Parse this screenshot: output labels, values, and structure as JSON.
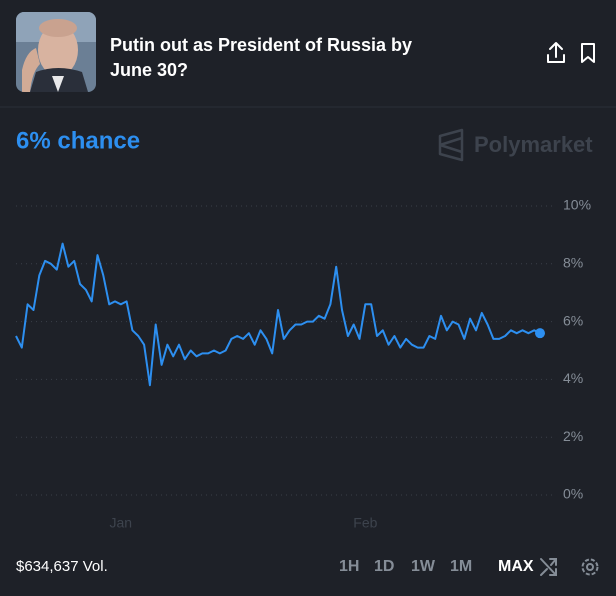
{
  "header": {
    "title_lines": [
      "Putin out as President of Russia by",
      "June 30?"
    ]
  },
  "headline": "6% chance",
  "brand": "Polymarket",
  "chart_data": {
    "type": "line",
    "color": "#2d8ff0",
    "categories": [
      null,
      null,
      null,
      null,
      null,
      null,
      null,
      null,
      null,
      null,
      null,
      null,
      null,
      null,
      null,
      null,
      null,
      null,
      "Jan",
      null,
      null,
      null,
      null,
      null,
      null,
      null,
      null,
      null,
      null,
      null,
      null,
      null,
      null,
      null,
      null,
      null,
      null,
      null,
      null,
      null,
      null,
      null,
      null,
      null,
      null,
      null,
      null,
      null,
      null,
      null,
      null,
      null,
      null,
      null,
      null,
      null,
      null,
      null,
      null,
      null,
      "Feb",
      null,
      null,
      null,
      null,
      null,
      null,
      null,
      null,
      null,
      null,
      null,
      null,
      null,
      null,
      null,
      null,
      null,
      null,
      null,
      null,
      null,
      null,
      null,
      null,
      null,
      null,
      null,
      null,
      null,
      null
    ],
    "values": [
      5.5,
      5.1,
      6.6,
      6.4,
      7.6,
      8.1,
      8.0,
      7.8,
      8.7,
      7.9,
      8.1,
      7.3,
      7.1,
      6.7,
      8.3,
      7.6,
      6.6,
      6.7,
      6.6,
      6.7,
      5.7,
      5.5,
      5.2,
      3.8,
      5.9,
      4.5,
      5.2,
      4.8,
      5.2,
      4.7,
      5.0,
      4.8,
      4.9,
      4.9,
      5.0,
      4.9,
      5.0,
      5.4,
      5.5,
      5.4,
      5.6,
      5.2,
      5.7,
      5.4,
      4.9,
      6.4,
      5.4,
      5.7,
      5.9,
      5.9,
      6.0,
      6.0,
      6.2,
      6.1,
      6.6,
      7.9,
      6.4,
      5.5,
      5.9,
      5.4,
      6.6,
      6.6,
      5.5,
      5.7,
      5.2,
      5.5,
      5.1,
      5.4,
      5.2,
      5.1,
      5.1,
      5.5,
      5.4,
      6.2,
      5.7,
      6.0,
      5.9,
      5.4,
      6.1,
      5.7,
      6.3,
      5.9,
      5.4,
      5.4,
      5.5,
      5.7,
      5.6,
      5.7,
      5.6,
      5.7,
      5.6
    ],
    "ylim": [
      0,
      10
    ],
    "yticks": [
      {
        "value": 0,
        "label": "0%"
      },
      {
        "value": 2,
        "label": "2%"
      },
      {
        "value": 4,
        "label": "4%"
      },
      {
        "value": 6,
        "label": "6%"
      },
      {
        "value": 8,
        "label": "8%"
      },
      {
        "value": 10,
        "label": "10%"
      }
    ],
    "grid": true
  },
  "footer": {
    "volume": "$634,637 Vol.",
    "ranges": [
      "1H",
      "1D",
      "1W",
      "1M",
      "MAX"
    ],
    "active_range": "MAX"
  }
}
